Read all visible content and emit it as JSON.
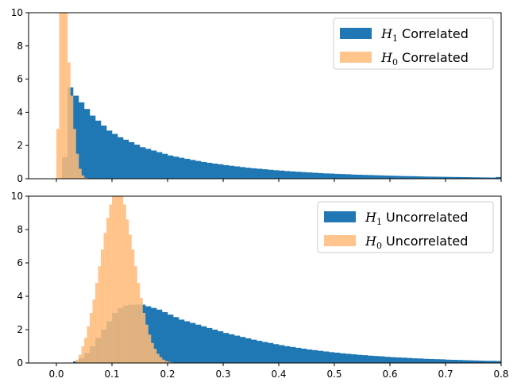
{
  "colors": {
    "h1": "#1f77b4",
    "h0": "#ffbb78",
    "h0_alpha": 0.85
  },
  "chart_data": [
    {
      "type": "histogram",
      "xlim": [
        -0.05,
        0.8
      ],
      "ylim": [
        0,
        10
      ],
      "xticks": [
        0.0,
        0.1,
        0.2,
        0.3,
        0.4,
        0.5,
        0.6,
        0.7,
        0.8
      ],
      "xtick_labels_visible": false,
      "yticks": [
        0,
        2,
        4,
        6,
        8,
        10
      ],
      "ytick_labels": [
        "0",
        "2",
        "4",
        "6",
        "8",
        "10"
      ],
      "legend_position": "top-right",
      "series": [
        {
          "name": "H_1 Correlated",
          "legend_symbol": "H",
          "legend_sub": "1",
          "legend_text": "Correlated",
          "color": "#1f77b4",
          "bin_width": 0.01,
          "bin_start": 0.0,
          "values": [
            0.0,
            1.3,
            5.5,
            5.0,
            4.6,
            4.2,
            3.8,
            3.5,
            3.2,
            2.9,
            2.7,
            2.5,
            2.35,
            2.2,
            2.05,
            1.9,
            1.8,
            1.7,
            1.6,
            1.5,
            1.4,
            1.33,
            1.26,
            1.2,
            1.13,
            1.07,
            1.01,
            0.96,
            0.91,
            0.87,
            0.82,
            0.78,
            0.74,
            0.7,
            0.66,
            0.63,
            0.6,
            0.57,
            0.54,
            0.51,
            0.49,
            0.46,
            0.44,
            0.42,
            0.4,
            0.38,
            0.36,
            0.34,
            0.32,
            0.31,
            0.29,
            0.28,
            0.27,
            0.25,
            0.24,
            0.23,
            0.22,
            0.21,
            0.2,
            0.19,
            0.18,
            0.17,
            0.16,
            0.155,
            0.15,
            0.14,
            0.13,
            0.125,
            0.12,
            0.115,
            0.11,
            0.105,
            0.1,
            0.095,
            0.09,
            0.085,
            0.08,
            0.075,
            0.07,
            0.1
          ]
        },
        {
          "name": "H_0 Correlated",
          "legend_symbol": "H",
          "legend_sub": "0",
          "legend_text": "Correlated",
          "color": "#ffbb78",
          "bin_width": 0.005,
          "bin_start": 0.0,
          "values": [
            3.0,
            10.0,
            10.0,
            10.0,
            7.0,
            5.0,
            3.0,
            1.5,
            0.6,
            0.2,
            0.05
          ]
        }
      ]
    },
    {
      "type": "histogram",
      "xlim": [
        -0.05,
        0.8
      ],
      "ylim": [
        0,
        10
      ],
      "xticks": [
        0.0,
        0.1,
        0.2,
        0.3,
        0.4,
        0.5,
        0.6,
        0.7,
        0.8
      ],
      "xtick_labels": [
        "0.0",
        "0.1",
        "0.2",
        "0.3",
        "0.4",
        "0.5",
        "0.6",
        "0.7",
        "0.8"
      ],
      "yticks": [
        0,
        2,
        4,
        6,
        8,
        10
      ],
      "ytick_labels": [
        "0",
        "2",
        "4",
        "6",
        "8",
        "10"
      ],
      "legend_position": "top-right",
      "series": [
        {
          "name": "H_1 Uncorrelated",
          "legend_symbol": "H",
          "legend_sub": "1",
          "legend_text": "Uncorrelated",
          "color": "#1f77b4",
          "bin_width": 0.01,
          "bin_start": 0.03,
          "values": [
            0.1,
            0.3,
            0.6,
            1.0,
            1.5,
            2.0,
            2.5,
            3.0,
            3.3,
            3.45,
            3.5,
            3.5,
            3.5,
            3.4,
            3.3,
            3.2,
            3.05,
            2.9,
            2.75,
            2.6,
            2.5,
            2.4,
            2.3,
            2.2,
            2.1,
            2.0,
            1.9,
            1.8,
            1.72,
            1.64,
            1.56,
            1.48,
            1.4,
            1.33,
            1.26,
            1.2,
            1.13,
            1.07,
            1.01,
            0.96,
            0.91,
            0.86,
            0.81,
            0.77,
            0.73,
            0.69,
            0.65,
            0.62,
            0.58,
            0.55,
            0.52,
            0.49,
            0.47,
            0.44,
            0.42,
            0.4,
            0.37,
            0.35,
            0.33,
            0.32,
            0.3,
            0.28,
            0.27,
            0.25,
            0.24,
            0.23,
            0.22,
            0.2,
            0.19,
            0.18,
            0.17,
            0.16,
            0.15,
            0.14,
            0.13,
            0.13,
            0.12
          ]
        },
        {
          "name": "H_0 Uncorrelated",
          "legend_symbol": "H",
          "legend_sub": "0",
          "legend_text": "Uncorrelated",
          "color": "#ffbb78",
          "bin_width": 0.005,
          "bin_start": 0.035,
          "values": [
            0.2,
            0.5,
            1.0,
            1.5,
            2.2,
            3.0,
            3.8,
            4.8,
            5.8,
            6.8,
            7.8,
            8.7,
            9.5,
            10.0,
            10.0,
            10.0,
            10.0,
            9.5,
            8.6,
            7.7,
            6.8,
            5.8,
            4.8,
            3.9,
            3.0,
            2.3,
            1.7,
            1.2,
            0.85,
            0.55,
            0.35,
            0.2,
            0.12,
            0.07,
            0.04,
            0.02
          ]
        }
      ]
    }
  ]
}
